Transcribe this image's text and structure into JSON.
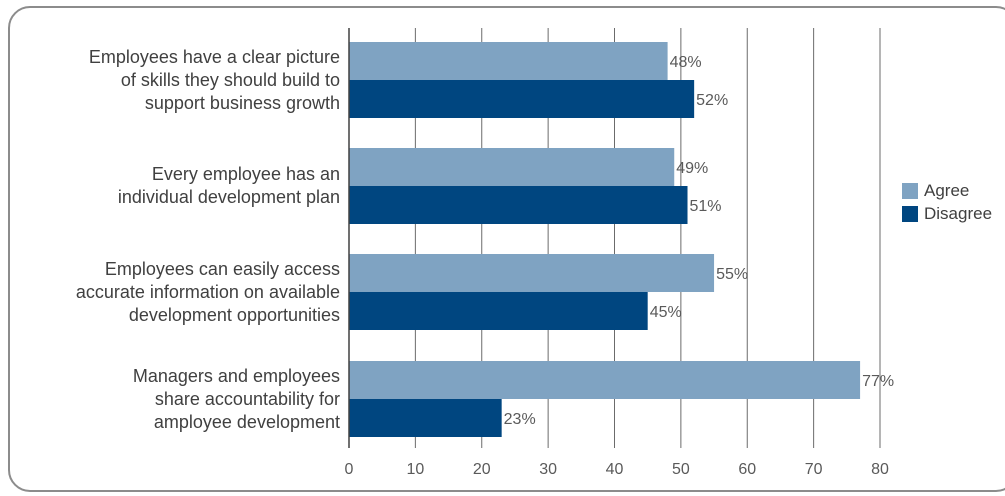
{
  "chart_data": {
    "type": "bar",
    "orientation": "horizontal",
    "categories": [
      "Employees have a clear picture of skills they should build to support business growth",
      "Every employee has an individual development plan",
      "Employees can easily access accurate information on available development opportunities",
      "Managers and employees share accountability for amployee development"
    ],
    "category_lines": [
      [
        "Employees have a clear picture",
        "of skills they should build to",
        "support business growth"
      ],
      [
        "Every employee has an",
        "individual development plan"
      ],
      [
        "Employees can easily access",
        "accurate information on available",
        "development opportunities"
      ],
      [
        "Managers and employees",
        "share accountability for",
        "amployee development"
      ]
    ],
    "series": [
      {
        "name": "Agree",
        "color": "#7fa3c2",
        "values": [
          48,
          49,
          55,
          77
        ],
        "labels": [
          "48%",
          "49%",
          "55%",
          "77%"
        ]
      },
      {
        "name": "Disagree",
        "color": "#004680",
        "values": [
          52,
          51,
          45,
          23
        ],
        "labels": [
          "52%",
          "51%",
          "45%",
          "23%"
        ]
      }
    ],
    "xlim": [
      0,
      80
    ],
    "xticks": [
      "0",
      "10",
      "20",
      "30",
      "40",
      "50",
      "60",
      "70",
      "80"
    ],
    "grid": true,
    "legend_position": "right"
  }
}
